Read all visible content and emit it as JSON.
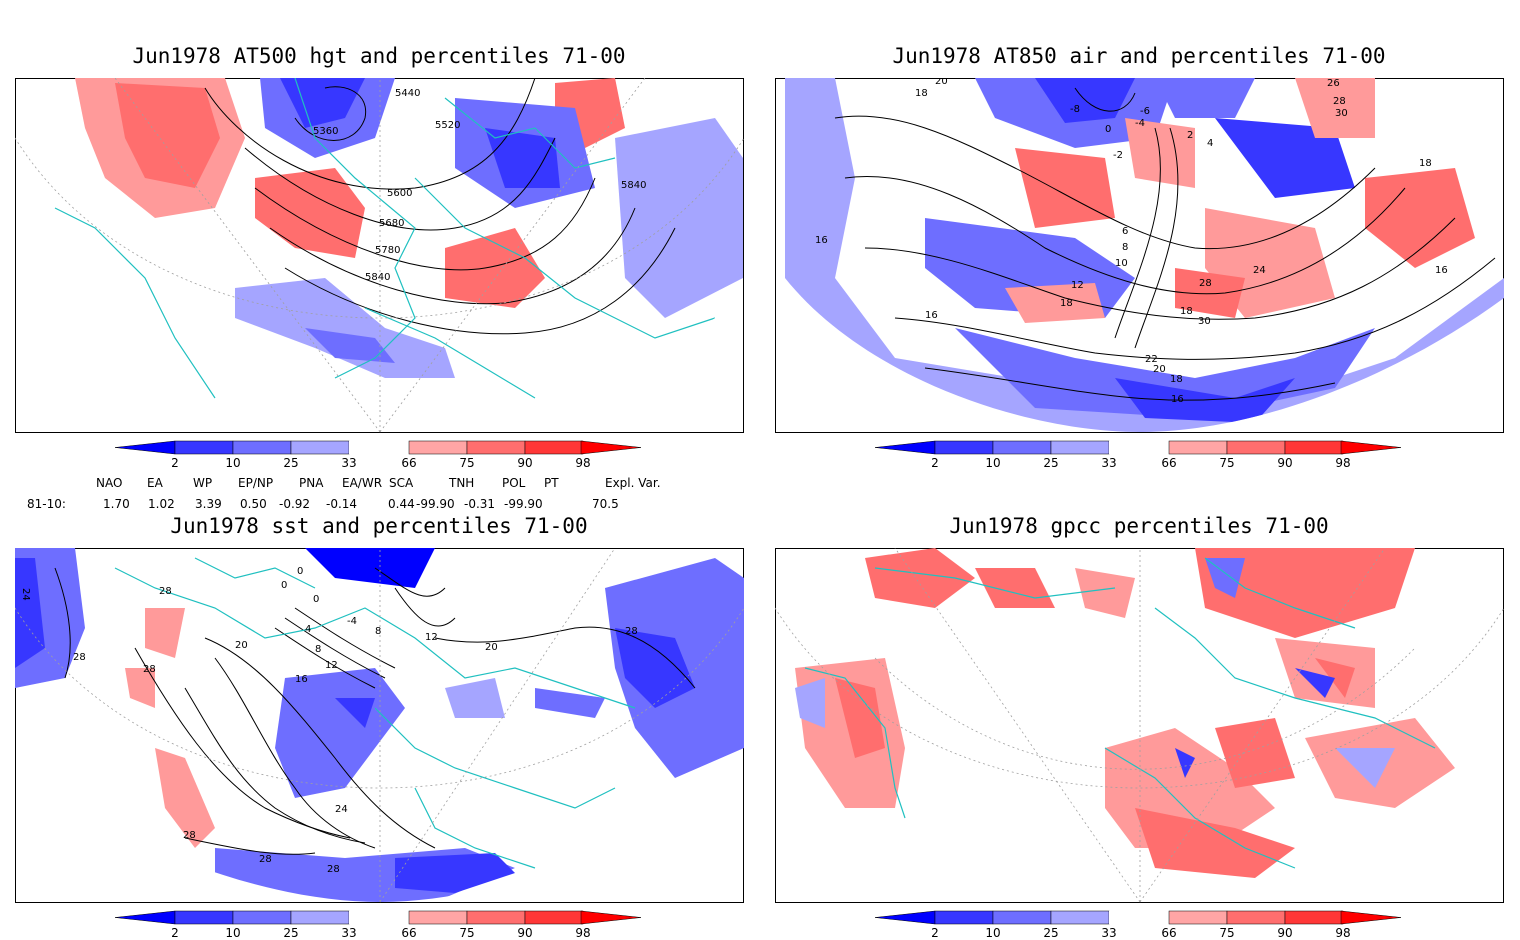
{
  "panels": [
    {
      "title": "Jun1978 AT500 hgt and percentiles 71-00",
      "contour_labels": [
        "5440",
        "5360",
        "5520",
        "5600",
        "5680",
        "5780",
        "5840",
        "5840"
      ]
    },
    {
      "title": "Jun1978 AT850 air and percentiles 71-00",
      "contour_labels": [
        "20",
        "18",
        "-8",
        "-6",
        "-4",
        "-2",
        "0",
        "2",
        "4",
        "6",
        "8",
        "10",
        "12",
        "18",
        "16",
        "24",
        "28",
        "30",
        "18",
        "16",
        "22",
        "20",
        "18",
        "16",
        "26",
        "28",
        "30",
        "18",
        "16"
      ]
    },
    {
      "title": "Jun1978 sst and percentiles 71-00",
      "contour_labels": [
        "24",
        "28",
        "28",
        "28",
        "0",
        "0",
        "0",
        "-4",
        "4",
        "8",
        "8",
        "12",
        "12",
        "16",
        "20",
        "20",
        "24",
        "28",
        "28",
        "28",
        "28"
      ]
    },
    {
      "title": "Jun1978 gpcc percentiles 71-00",
      "contour_labels": []
    }
  ],
  "colorbar": {
    "labels": [
      "2",
      "10",
      "25",
      "33",
      "66",
      "75",
      "90",
      "98"
    ],
    "colors": [
      "#0000ff",
      "#3737ff",
      "#6e6eff",
      "#a5a5ff",
      "#ffffff",
      "#ffa5a5",
      "#ff6e6e",
      "#ff3737",
      "#ff0000"
    ]
  },
  "indices": {
    "headers": [
      "NAO",
      "EA",
      "WP",
      "EP/NP",
      "PNA",
      "EA/WR",
      "SCA",
      "TNH",
      "POL",
      "PT",
      "Expl. Var."
    ],
    "row_label": "81-10:",
    "values": [
      "1.70",
      "1.02",
      "3.39",
      "0.50",
      "-0.92",
      "-0.14",
      "0.44",
      "-99.90",
      "-0.31",
      "-99.90",
      "70.5"
    ]
  },
  "colors": {
    "coast": "#20c0c0",
    "contour": "#000000",
    "grid": "#a0a0a0"
  }
}
